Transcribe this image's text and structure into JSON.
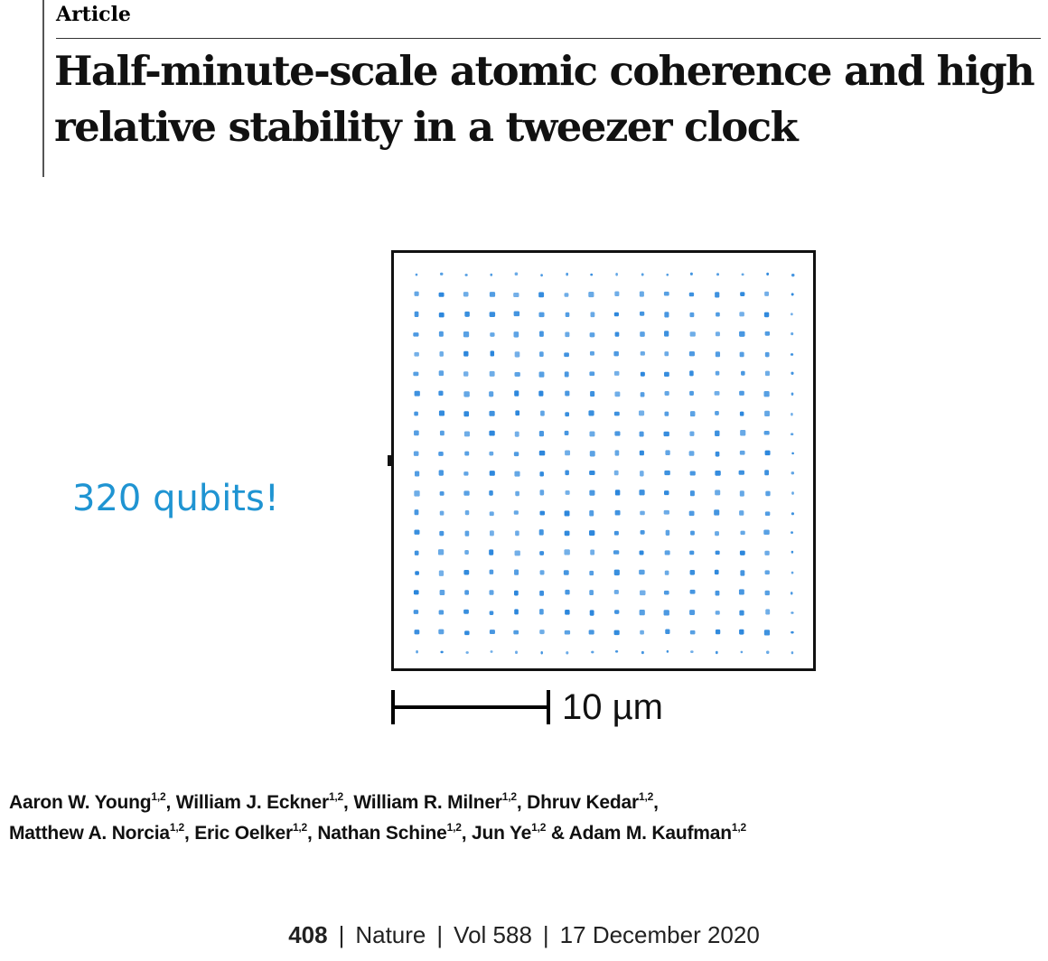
{
  "article_label": "Article",
  "title": "Half-minute-scale atomic coherence and high relative stability in a tweezer clock",
  "annotation": "320 qubits!",
  "figure": {
    "scale_bar_label": "10 µm",
    "dot_color": "#2a86dc",
    "array_rows": 20,
    "array_cols": 16
  },
  "authors": [
    {
      "name": "Aaron W. Young",
      "affiliation": "1,2",
      "suffix": ", "
    },
    {
      "name": "William J. Eckner",
      "affiliation": "1,2",
      "suffix": ", "
    },
    {
      "name": "William R. Milner",
      "affiliation": "1,2",
      "suffix": ", "
    },
    {
      "name": "Dhruv Kedar",
      "affiliation": "1,2",
      "suffix": ","
    },
    {
      "name": "Matthew A. Norcia",
      "affiliation": "1,2",
      "suffix": ", "
    },
    {
      "name": "Eric Oelker",
      "affiliation": "1,2",
      "suffix": ", "
    },
    {
      "name": "Nathan Schine",
      "affiliation": "1,2",
      "suffix": ", "
    },
    {
      "name": "Jun Ye",
      "affiliation": "1,2",
      "suffix": " & "
    },
    {
      "name": "Adam M. Kaufman",
      "affiliation": "1,2",
      "suffix": ""
    }
  ],
  "footer": {
    "page_number": "408",
    "journal": "Nature",
    "volume": "Vol 588",
    "date": "17 December 2020"
  },
  "colors": {
    "annotation": "#1f94d2",
    "dots": "#2a86dc"
  }
}
